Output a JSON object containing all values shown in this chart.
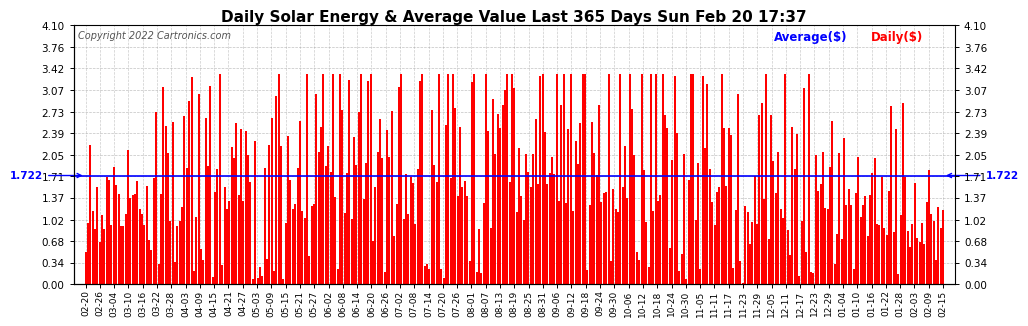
{
  "title": "Daily Solar Energy & Average Value Last 365 Days Sun Feb 20 17:37",
  "copyright": "Copyright 2022 Cartronics.com",
  "average_label": "Average($)",
  "daily_label": "Daily($)",
  "average_value": 1.722,
  "ylim": [
    0.0,
    4.1
  ],
  "yticks": [
    0.0,
    0.34,
    0.68,
    1.02,
    1.37,
    1.71,
    2.05,
    2.39,
    2.73,
    3.07,
    3.42,
    3.76,
    4.1
  ],
  "bar_color": "#FF0000",
  "avg_line_color": "#0000FF",
  "background_color": "#FFFFFF",
  "grid_color": "#999999",
  "title_color": "#000000",
  "avg_label_color": "#0000FF",
  "daily_label_color": "#FF0000",
  "copyright_color": "#555555",
  "x_labels": [
    "02-20",
    "02-26",
    "03-04",
    "03-10",
    "03-16",
    "03-22",
    "03-28",
    "04-03",
    "04-09",
    "04-15",
    "04-21",
    "04-27",
    "05-03",
    "05-09",
    "05-15",
    "05-21",
    "05-27",
    "06-02",
    "06-08",
    "06-14",
    "06-20",
    "06-26",
    "07-02",
    "07-08",
    "07-14",
    "07-20",
    "07-26",
    "08-01",
    "08-07",
    "08-13",
    "08-19",
    "08-25",
    "08-31",
    "09-06",
    "09-12",
    "09-18",
    "09-24",
    "09-30",
    "10-06",
    "10-12",
    "10-18",
    "10-24",
    "10-30",
    "11-05",
    "11-11",
    "11-17",
    "11-23",
    "11-29",
    "12-05",
    "12-11",
    "12-17",
    "12-23",
    "12-29",
    "01-04",
    "01-10",
    "01-16",
    "01-22",
    "01-28",
    "02-03",
    "02-09",
    "02-15"
  ],
  "n_days": 365,
  "seed": 7
}
